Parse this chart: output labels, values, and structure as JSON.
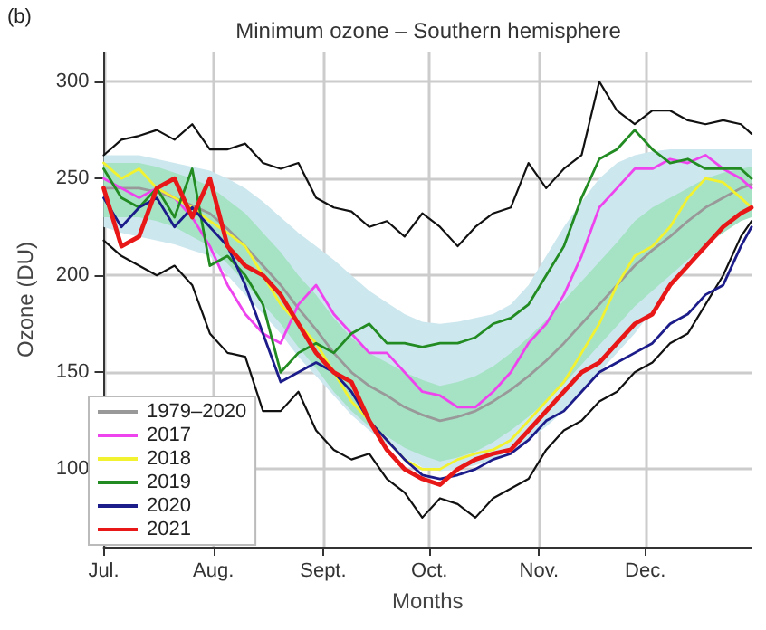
{
  "chart_data": {
    "type": "line",
    "title": "Minimum ozone – Southern hemisphere",
    "xlabel": "Months",
    "ylabel": "Ozone (DU)",
    "annotations": [
      "(b)"
    ],
    "x": [
      "--07-01",
      "--07-06",
      "--07-11",
      "--07-16",
      "--07-21",
      "--07-26",
      "--07-31",
      "--08-05",
      "--08-10",
      "--08-15",
      "--08-20",
      "--08-25",
      "--08-30",
      "--09-04",
      "--09-09",
      "--09-14",
      "--09-19",
      "--09-24",
      "--09-29",
      "--10-04",
      "--10-09",
      "--10-14",
      "--10-19",
      "--10-24",
      "--10-29",
      "--11-03",
      "--11-08",
      "--11-13",
      "--11-18",
      "--11-23",
      "--11-28",
      "--12-03",
      "--12-08",
      "--12-13",
      "--12-18",
      "--12-23",
      "--12-28",
      "--12-31"
    ],
    "xlim": [
      "--07-01",
      "--12-31"
    ],
    "xticks": [
      {
        "value": "--07-01",
        "label": "Jul."
      },
      {
        "value": "--08-01",
        "label": "Aug."
      },
      {
        "value": "--09-01",
        "label": "Sept."
      },
      {
        "value": "--10-01",
        "label": "Oct."
      },
      {
        "value": "--11-01",
        "label": "Nov."
      },
      {
        "value": "--12-01",
        "label": "Dec."
      }
    ],
    "ylim": [
      60,
      315
    ],
    "yticks": [
      100,
      150,
      200,
      250,
      300
    ],
    "grid": true,
    "legend": "bottom left",
    "marker": "none",
    "series": [
      {
        "color": "#cde7ef",
        "values": [
          null,
          null,
          null,
          null,
          null,
          null,
          null,
          null,
          null,
          null,
          null,
          null,
          null,
          null,
          null,
          null,
          null,
          null,
          null,
          null,
          null,
          null,
          null,
          null,
          null,
          null,
          null,
          null,
          null,
          null,
          null,
          null,
          null,
          null,
          null,
          null,
          null,
          null
        ],
        "lower": [
          225,
          222,
          220,
          218,
          216,
          213,
          210,
          200,
          190,
          180,
          170,
          158,
          148,
          138,
          128,
          120,
          113,
          106,
          101,
          99,
          100,
          102,
          105,
          110,
          115,
          122,
          130,
          140,
          150,
          160,
          170,
          182,
          195,
          205,
          215,
          222,
          230,
          233
        ],
        "upper": [
          262,
          262,
          262,
          260,
          258,
          256,
          254,
          250,
          245,
          238,
          230,
          222,
          215,
          208,
          200,
          192,
          186,
          180,
          176,
          175,
          176,
          178,
          180,
          185,
          195,
          210,
          225,
          238,
          250,
          258,
          262,
          264,
          265,
          265,
          265,
          265,
          265,
          265
        ]
      },
      {
        "name": "1979–2020",
        "color": "#999999",
        "values": [
          245,
          245,
          245,
          243,
          240,
          236,
          232,
          224,
          215,
          205,
          195,
          183,
          172,
          160,
          150,
          143,
          138,
          132,
          128,
          125,
          127,
          130,
          135,
          141,
          148,
          156,
          165,
          175,
          185,
          195,
          205,
          213,
          220,
          228,
          235,
          240,
          245,
          247
        ],
        "lower": [
          230,
          230,
          230,
          228,
          225,
          220,
          215,
          206,
          196,
          185,
          175,
          163,
          152,
          140,
          130,
          122,
          117,
          111,
          107,
          104,
          106,
          109,
          114,
          120,
          127,
          135,
          144,
          154,
          164,
          174,
          184,
          192,
          200,
          208,
          216,
          222,
          228,
          230
        ],
        "upper": [
          258,
          258,
          258,
          256,
          253,
          250,
          246,
          239,
          232,
          222,
          212,
          200,
          190,
          178,
          168,
          160,
          155,
          150,
          146,
          143,
          145,
          148,
          153,
          160,
          168,
          177,
          187,
          197,
          207,
          217,
          228,
          235,
          240,
          245,
          250,
          253,
          255,
          256
        ]
      },
      {
        "color": "#111111",
        "values": [
          262,
          270,
          272,
          275,
          270,
          278,
          265,
          265,
          268,
          258,
          255,
          258,
          240,
          235,
          233,
          225,
          228,
          220,
          232,
          225,
          215,
          225,
          232,
          235,
          258,
          245,
          255,
          262,
          300,
          285,
          278,
          285,
          285,
          280,
          278,
          280,
          278,
          273
        ]
      },
      {
        "color": "#111111",
        "values": [
          218,
          210,
          205,
          200,
          205,
          195,
          170,
          160,
          158,
          130,
          130,
          140,
          120,
          110,
          105,
          108,
          95,
          88,
          75,
          85,
          82,
          75,
          85,
          90,
          95,
          110,
          120,
          125,
          135,
          140,
          150,
          155,
          165,
          170,
          185,
          200,
          220,
          228
        ]
      },
      {
        "name": "2017",
        "color": "#ee44ee",
        "values": [
          250,
          245,
          240,
          245,
          240,
          230,
          215,
          195,
          180,
          170,
          165,
          185,
          195,
          180,
          170,
          160,
          160,
          150,
          140,
          138,
          132,
          132,
          140,
          150,
          165,
          175,
          190,
          210,
          235,
          245,
          255,
          255,
          260,
          258,
          262,
          255,
          250,
          245
        ]
      },
      {
        "name": "2018",
        "color": "#f2f230",
        "values": [
          258,
          250,
          255,
          245,
          240,
          235,
          228,
          222,
          215,
          200,
          185,
          175,
          165,
          150,
          135,
          125,
          115,
          105,
          100,
          100,
          105,
          108,
          110,
          115,
          125,
          135,
          145,
          160,
          175,
          195,
          210,
          215,
          225,
          240,
          250,
          248,
          240,
          235
        ]
      },
      {
        "name": "2019",
        "color": "#228b22",
        "values": [
          255,
          240,
          235,
          245,
          230,
          255,
          205,
          210,
          200,
          185,
          150,
          160,
          165,
          160,
          170,
          175,
          165,
          165,
          163,
          165,
          165,
          168,
          175,
          178,
          185,
          200,
          215,
          240,
          260,
          265,
          275,
          265,
          258,
          260,
          255,
          255,
          255,
          250
        ]
      },
      {
        "name": "2020",
        "color": "#1c1c8a",
        "values": [
          240,
          225,
          235,
          240,
          225,
          235,
          225,
          215,
          195,
          170,
          145,
          150,
          155,
          150,
          140,
          125,
          115,
          105,
          97,
          95,
          97,
          100,
          105,
          108,
          115,
          125,
          130,
          140,
          150,
          155,
          160,
          165,
          175,
          180,
          190,
          195,
          215,
          225
        ]
      },
      {
        "name": "2021",
        "color": "#e81818",
        "values": [
          245,
          215,
          220,
          245,
          250,
          230,
          250,
          215,
          205,
          200,
          190,
          175,
          160,
          150,
          145,
          125,
          110,
          100,
          95,
          92,
          100,
          105,
          108,
          110,
          120,
          130,
          140,
          150,
          155,
          165,
          175,
          180,
          195,
          205,
          215,
          225,
          232,
          235
        ]
      }
    ]
  }
}
